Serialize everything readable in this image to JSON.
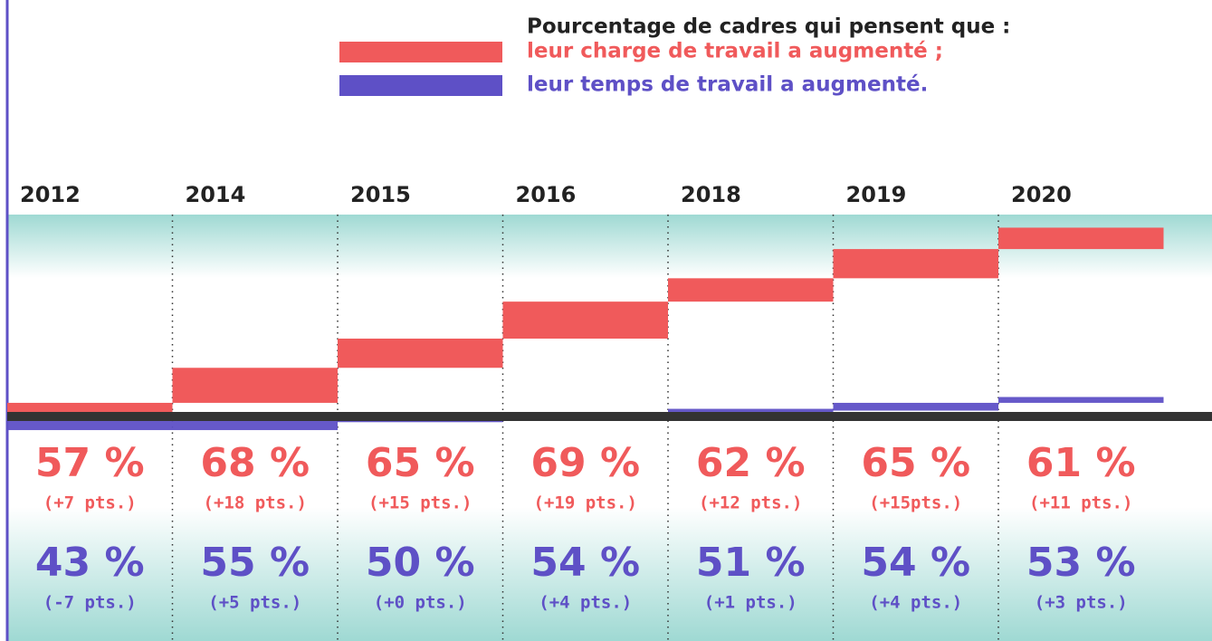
{
  "chart_data": {
    "type": "waterfall",
    "title": "Pourcentage de cadres qui pensent que :",
    "categories": [
      "2012",
      "2014",
      "2015",
      "2016",
      "2018",
      "2019",
      "2020"
    ],
    "series": [
      {
        "name": "leur charge de travail a augmenté ;",
        "color": "#f05a5b",
        "values": [
          57,
          68,
          65,
          69,
          62,
          65,
          61
        ],
        "value_labels": [
          "57 %",
          "68 %",
          "65 %",
          "69 %",
          "62 %",
          "65 %",
          "61 %"
        ],
        "changes": [
          7,
          18,
          15,
          19,
          12,
          15,
          11
        ],
        "change_labels": [
          "(+7 pts.)",
          "(+18 pts.)",
          "(+15 pts.)",
          "(+19 pts.)",
          "(+12 pts.)",
          "(+15pts.)",
          "(+11 pts.)"
        ]
      },
      {
        "name": "leur temps de travail a augmenté.",
        "color": "#5e50c6",
        "values": [
          43,
          55,
          50,
          54,
          51,
          54,
          53
        ],
        "value_labels": [
          "43 %",
          "55 %",
          "50 %",
          "54 %",
          "51 %",
          "54 %",
          "53 %"
        ],
        "changes": [
          -7,
          5,
          0,
          4,
          1,
          4,
          3
        ],
        "change_labels": [
          "(-7 pts.)",
          "(+5 pts.)",
          "(+0 pts.)",
          "(+4 pts.)",
          "(+1 pts.)",
          "(+4 pts.)",
          "(+3 pts.)"
        ]
      }
    ]
  }
}
